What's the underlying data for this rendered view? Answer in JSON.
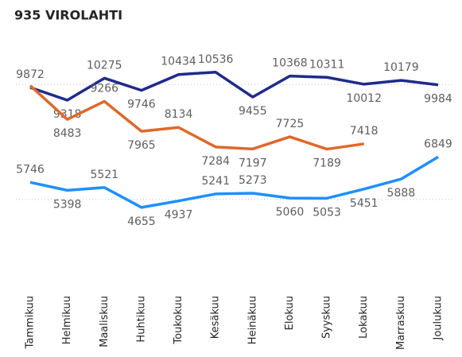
{
  "chart_data": {
    "type": "line",
    "title": "935 VIROLAHTI",
    "categories": [
      "Tammikuu",
      "Helmikuu",
      "Maaliskuu",
      "Huhtikuu",
      "Toukokuu",
      "Kesäkuu",
      "Heinäkuu",
      "Elokuu",
      "Syyskuu",
      "Lokakuu",
      "Marraskuu",
      "Joulukuu"
    ],
    "series": [
      {
        "color": "#1f2a8c",
        "values": [
          9872,
          9318,
          10275,
          9746,
          10434,
          10536,
          9455,
          10368,
          10311,
          10012,
          10179,
          9984
        ]
      },
      {
        "color": "#e0682b",
        "values": [
          9950,
          8483,
          9266,
          7965,
          8134,
          7284,
          7197,
          7725,
          7189,
          7418,
          null,
          null
        ],
        "value_labels": [
          null,
          "8483",
          "9266",
          "7965",
          "8134",
          "7284",
          "7197",
          "7725",
          "7189",
          "7418",
          null,
          null
        ]
      },
      {
        "color": "#1e90ff",
        "values": [
          5746,
          5398,
          5521,
          4655,
          4937,
          5241,
          5273,
          5060,
          5053,
          5451,
          5888,
          6849
        ]
      }
    ],
    "ylim": [
      1400,
      11600
    ],
    "yticks": [
      5000,
      10000
    ],
    "grid": true
  }
}
